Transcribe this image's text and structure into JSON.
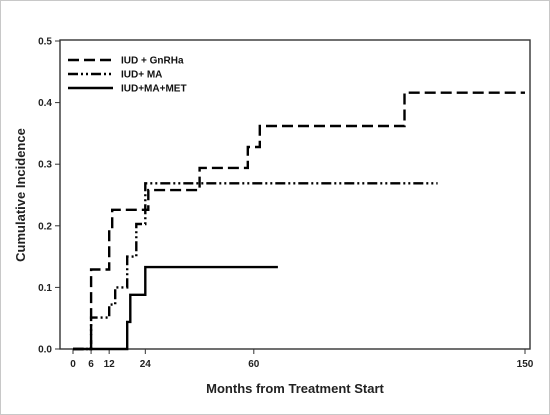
{
  "chart_data": {
    "type": "line",
    "step": true,
    "title": "",
    "xlabel": "Months from Treatment Start",
    "ylabel": "Cumulative Incidence",
    "xlim": [
      0,
      150
    ],
    "ylim": [
      0,
      0.5
    ],
    "xticks": [
      0,
      6,
      12,
      24,
      60,
      150
    ],
    "yticks": [
      0.0,
      0.1,
      0.2,
      0.3,
      0.4,
      0.5
    ],
    "ytick_labels": [
      "0.0",
      "0.1",
      "0.2",
      "0.3",
      "0.4",
      "0.5"
    ],
    "grid": false,
    "legend_position": "top-left",
    "series": [
      {
        "name": "IUD + GnRHa",
        "line_style": "dashed",
        "x": [
          0,
          6,
          6,
          12,
          12,
          13,
          13,
          25,
          25,
          42,
          42,
          58,
          58,
          62,
          62,
          110,
          110,
          150
        ],
        "y": [
          0,
          0,
          0.129,
          0.129,
          0.194,
          0.194,
          0.226,
          0.226,
          0.258,
          0.258,
          0.294,
          0.294,
          0.328,
          0.328,
          0.362,
          0.362,
          0.416,
          0.416
        ]
      },
      {
        "name": "IUD+ MA",
        "line_style": "dash-dot-dot",
        "x": [
          0,
          6,
          6,
          12,
          12,
          14,
          14,
          18,
          18,
          21,
          21,
          24,
          24,
          43,
          43,
          121
        ],
        "y": [
          0,
          0,
          0.051,
          0.051,
          0.072,
          0.072,
          0.1,
          0.1,
          0.15,
          0.15,
          0.203,
          0.203,
          0.269,
          0.269,
          0.269,
          0.269
        ]
      },
      {
        "name": "IUD+MA+MET",
        "line_style": "solid",
        "x": [
          0,
          18,
          18,
          19,
          19,
          24,
          24,
          68
        ],
        "y": [
          0,
          0,
          0.044,
          0.044,
          0.088,
          0.088,
          0.133,
          0.133
        ]
      }
    ]
  }
}
